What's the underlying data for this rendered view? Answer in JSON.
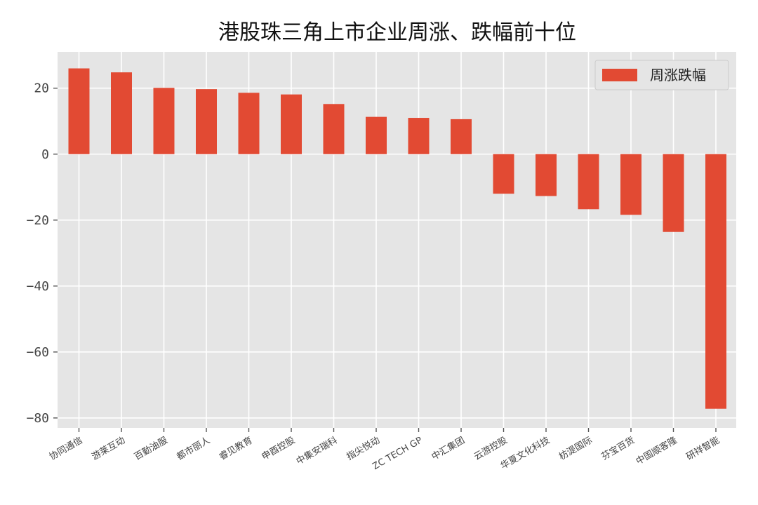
{
  "chart_data": {
    "type": "bar",
    "title": "港股珠三角上市企业周涨、跌幅前十位",
    "categories": [
      "协同通信",
      "游莱互动",
      "百勤油服",
      "都市丽人",
      "睿见教育",
      "申酉控股",
      "中集安瑞科",
      "指尖悦动",
      "ZC TECH GP",
      "中汇集团",
      "云游控股",
      "华夏文化科技",
      "枋湜国际",
      "芬宝百货",
      "中国顺客隆",
      "研祥智能"
    ],
    "series": [
      {
        "name": "周涨跌幅",
        "values": [
          26.0,
          24.8,
          20.1,
          19.7,
          18.6,
          18.1,
          15.2,
          11.3,
          11.0,
          10.6,
          -12.0,
          -12.7,
          -16.7,
          -18.4,
          -23.6,
          -77.2
        ]
      }
    ],
    "xlabel": "",
    "ylabel": "",
    "ylim": [
      -83,
      31
    ],
    "yticks": [
      20,
      0,
      -20,
      -40,
      -60,
      -80
    ],
    "ytick_labels": [
      "20",
      "0",
      "−20",
      "−40",
      "−60",
      "−80"
    ],
    "grid": true,
    "legend_position": "top-right",
    "colors": {
      "bar": "#E24A33",
      "plot_background": "#E5E5E5",
      "grid": "#FFFFFF"
    }
  }
}
